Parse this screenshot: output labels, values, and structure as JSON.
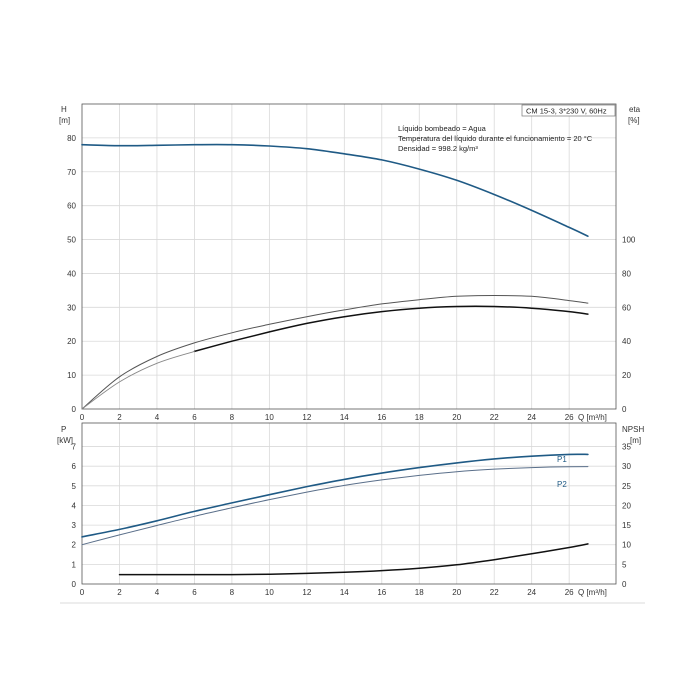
{
  "chart_data": [
    {
      "type": "line",
      "title_box": "CM 15-3, 3*230 V, 60Hz",
      "info_lines": [
        "Líquido bombeado = Agua",
        "Temperatura del líquido durante el funcionamiento = 20 °C",
        "Densidad = 998.2 kg/m³"
      ],
      "y_left_label": "H",
      "y_left_unit": "[m]",
      "y_right_label": "eta",
      "y_right_unit": "[%]",
      "x_label": "Q [m³/h]",
      "xlim": [
        0,
        28.5
      ],
      "x_ticks": [
        0,
        2,
        4,
        6,
        8,
        10,
        12,
        14,
        16,
        18,
        20,
        22,
        24,
        26
      ],
      "ylim_left": [
        0,
        90
      ],
      "y_left_ticks": [
        0,
        10,
        20,
        30,
        40,
        50,
        60,
        70,
        80
      ],
      "ylim_right": [
        0,
        180
      ],
      "y_right_ticks": [
        0,
        20,
        40,
        60,
        80,
        100
      ],
      "grid": true,
      "series": [
        {
          "axis": "left",
          "color": "#1f5a85",
          "width": 1.6,
          "x": [
            0,
            2,
            4,
            6,
            8,
            10,
            12,
            14,
            16,
            18,
            20,
            22,
            24,
            26,
            27
          ],
          "y": [
            78,
            77.7,
            77.8,
            78,
            78,
            77.6,
            76.8,
            75.3,
            73.5,
            70.8,
            67.5,
            63.3,
            58.6,
            53.6,
            51
          ]
        },
        {
          "axis": "right",
          "color": "#555555",
          "width": 1.0,
          "x": [
            0,
            2,
            4,
            6,
            8,
            10,
            12,
            14,
            16,
            18,
            20,
            22,
            24,
            26,
            27
          ],
          "y": [
            0,
            19,
            31,
            39,
            45,
            50,
            54.5,
            58.5,
            62,
            64.5,
            66.5,
            67,
            66.5,
            64,
            62.5
          ]
        },
        {
          "axis": "right",
          "color": "#111111",
          "width": 1.5,
          "x": [
            6,
            8,
            10,
            12,
            14,
            16,
            18,
            20,
            22,
            24,
            26,
            27
          ],
          "y": [
            34,
            40,
            45.5,
            50.5,
            54.5,
            57.5,
            59.5,
            60.5,
            60.5,
            59.5,
            57.5,
            56
          ]
        },
        {
          "axis": "right",
          "color": "#888888",
          "width": 0.9,
          "x": [
            0,
            2,
            4,
            6
          ],
          "y": [
            0,
            16,
            27,
            34
          ]
        }
      ]
    },
    {
      "type": "line",
      "y_left_label": "P",
      "y_left_unit": "[kW]",
      "y_right_label": "NPSH",
      "y_right_unit": "[m]",
      "x_label": "Q [m³/h]",
      "xlim": [
        0,
        28.5
      ],
      "x_ticks": [
        0,
        2,
        4,
        6,
        8,
        10,
        12,
        14,
        16,
        18,
        20,
        22,
        24,
        26
      ],
      "ylim_left": [
        0,
        8.2
      ],
      "y_left_ticks": [
        0,
        1,
        2,
        3,
        4,
        5,
        6,
        7
      ],
      "ylim_right": [
        0,
        41
      ],
      "y_right_ticks": [
        0,
        5,
        10,
        15,
        20,
        25,
        30,
        35
      ],
      "grid": true,
      "series": [
        {
          "name": "P1",
          "axis": "left",
          "color": "#1f5a85",
          "width": 1.6,
          "x": [
            0,
            2,
            4,
            6,
            8,
            10,
            12,
            14,
            16,
            18,
            20,
            22,
            24,
            26,
            27
          ],
          "y": [
            2.4,
            2.78,
            3.22,
            3.7,
            4.13,
            4.55,
            4.96,
            5.33,
            5.65,
            5.93,
            6.17,
            6.37,
            6.51,
            6.6,
            6.6
          ]
        },
        {
          "name": "P2",
          "axis": "left",
          "color": "#5a6f8a",
          "width": 1.0,
          "x": [
            0,
            2,
            4,
            6,
            8,
            10,
            12,
            14,
            16,
            18,
            20,
            22,
            24,
            26,
            27
          ],
          "y": [
            2.0,
            2.5,
            2.98,
            3.45,
            3.88,
            4.3,
            4.68,
            5.02,
            5.3,
            5.53,
            5.72,
            5.85,
            5.93,
            5.97,
            5.98
          ]
        },
        {
          "axis": "right",
          "color": "#111111",
          "width": 1.5,
          "x": [
            2,
            4,
            6,
            8,
            10,
            12,
            14,
            16,
            18,
            20,
            22,
            24,
            26,
            27
          ],
          "y": [
            2.4,
            2.4,
            2.4,
            2.4,
            2.5,
            2.7,
            3.0,
            3.4,
            4.0,
            4.9,
            6.2,
            7.7,
            9.3,
            10.2
          ]
        }
      ]
    }
  ]
}
